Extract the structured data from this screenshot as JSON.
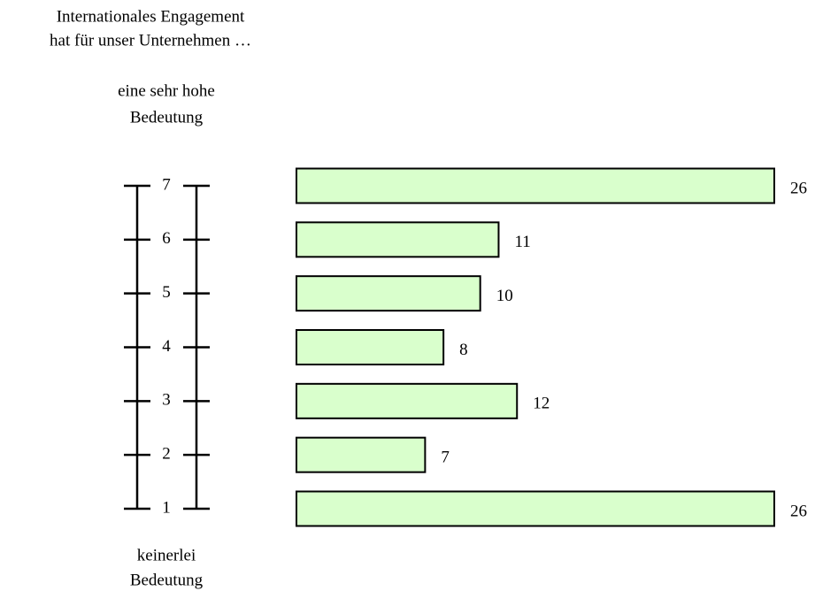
{
  "chart_data": {
    "type": "bar",
    "title": [
      "Internationales Engagement",
      "hat für unser Unternehmen …"
    ],
    "top_label": [
      "eine sehr hohe",
      "Bedeutung"
    ],
    "bottom_label": [
      "keinerlei",
      "Bedeutung"
    ],
    "categories": [
      "7",
      "6",
      "5",
      "4",
      "3",
      "2",
      "1"
    ],
    "values": [
      26,
      11,
      10,
      8,
      12,
      7,
      26
    ],
    "color": "#d9ffcc"
  }
}
